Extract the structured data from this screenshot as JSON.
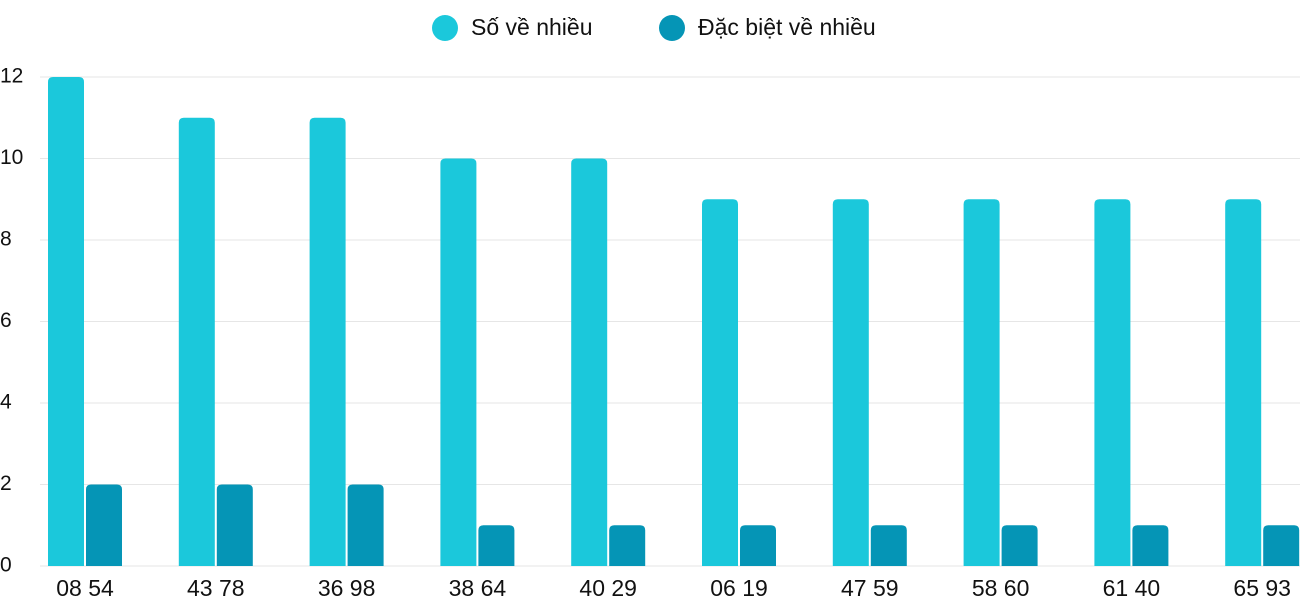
{
  "chart_data": {
    "type": "bar",
    "categories": [
      "08 54",
      "43 78",
      "36 98",
      "38 64",
      "40 29",
      "06 19",
      "47 59",
      "58 60",
      "61 40",
      "65 93"
    ],
    "series": [
      {
        "name": "Số về nhiều",
        "color": "#1bc8db",
        "values": [
          12,
          11,
          11,
          10,
          10,
          9,
          9,
          9,
          9,
          9
        ]
      },
      {
        "name": "Đặc biệt về nhiều",
        "color": "#0595b6",
        "values": [
          2,
          2,
          2,
          1,
          1,
          1,
          1,
          1,
          1,
          1
        ]
      }
    ],
    "ylim": [
      0,
      12
    ],
    "yticks": [
      0,
      2,
      4,
      6,
      8,
      10,
      12
    ],
    "grid": true,
    "legend": "top"
  }
}
